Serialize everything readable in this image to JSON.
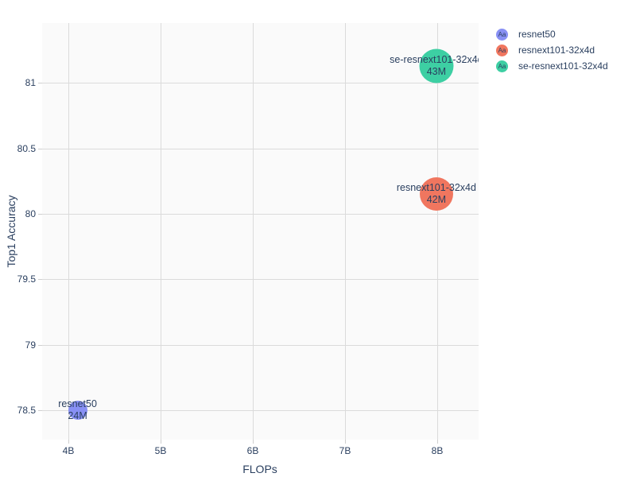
{
  "figure": {
    "background": "#ffffff",
    "plot_background": "#fafafa",
    "grid_color": "#dbdbdb",
    "tick_color": "#cfcfcf",
    "font_color": "#2a3f5f"
  },
  "chart_data": {
    "type": "scatter",
    "subtype": "bubble",
    "title": "",
    "xlabel": "FLOPs",
    "ylabel": "Top1 Accuracy",
    "x_tick_values": [
      4,
      5,
      6,
      7,
      8
    ],
    "x_tick_labels": [
      "4B",
      "5B",
      "6B",
      "7B",
      "8B"
    ],
    "y_tick_values": [
      78.5,
      79,
      79.5,
      80,
      80.5,
      81
    ],
    "y_tick_labels": [
      "78.5",
      "79",
      "79.5",
      "80",
      "80.5",
      "81"
    ],
    "x_range": [
      3.716,
      8.448
    ],
    "y_range": [
      78.277,
      81.457
    ],
    "x_unit": "billions of FLOPs",
    "grid": true,
    "legend": {
      "position": "top-right",
      "sample_text": "Aa"
    },
    "points": [
      {
        "name": "resnet50",
        "x": 4.1,
        "y": 78.5,
        "size_label": "24M",
        "size_m": 24,
        "color": "#8890f4"
      },
      {
        "name": "resnext101-32x4d",
        "x": 7.99,
        "y": 80.15,
        "size_label": "42M",
        "size_m": 42,
        "color": "#f0765f"
      },
      {
        "name": "se-resnext101-32x4d",
        "x": 7.99,
        "y": 81.13,
        "size_label": "43M",
        "size_m": 43,
        "color": "#3dcfa3"
      }
    ]
  }
}
